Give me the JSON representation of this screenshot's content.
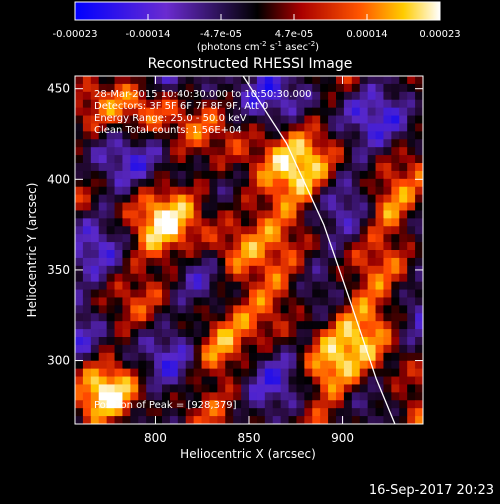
{
  "colorbar": {
    "ticks": [
      "-0.00023",
      "-0.00014",
      "-4.7e-05",
      "4.7e-05",
      "0.00014",
      "0.00023"
    ],
    "units_main": "(photons cm",
    "units_sup1": "-2",
    "units_mid1": " s",
    "units_sup2": "-1",
    "units_mid2": " asec",
    "units_sup3": "-2",
    "units_end": ")"
  },
  "chart_data": {
    "type": "heatmap",
    "title": "Reconstructed RHESSI Image",
    "xlabel": "Heliocentric X (arcsec)",
    "ylabel": "Heliocentric Y (arcsec)",
    "xlim": [
      757,
      943
    ],
    "ylim": [
      265,
      457
    ],
    "xticks": [
      800,
      850,
      900
    ],
    "yticks": [
      300,
      350,
      400,
      450
    ],
    "colorbar_range": [
      -0.00023,
      0.00023
    ],
    "annotations": [
      "28-Mar-2015 10:40:30.000 to 10:50:30.000",
      "Detectors: 3F 5F 6F 7F 8F 9F, Att 0",
      "Energy Range: 25.0 - 50.0 keV",
      "Clean     Total counts: 1.56E+04",
      "Position of Peak = [928,379]"
    ],
    "limb_curve": [
      [
        845,
        460
      ],
      [
        870,
        420
      ],
      [
        890,
        375
      ],
      [
        905,
        330
      ],
      [
        918,
        290
      ],
      [
        928,
        265
      ]
    ],
    "peak": [
      928,
      379
    ]
  },
  "footer": {
    "date": "16-Sep-2017 20:23"
  }
}
